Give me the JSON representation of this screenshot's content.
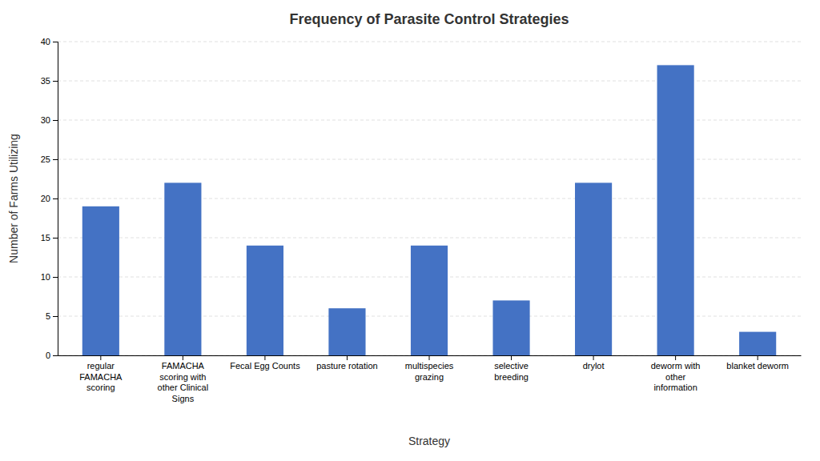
{
  "chart_data": {
    "type": "bar",
    "title": "Frequency of Parasite Control Strategies",
    "xlabel": "Strategy",
    "ylabel": "Number of Farms Utilizing",
    "categories": [
      "regular\nFAMACHA\nscoring",
      "FAMACHA\nscoring with\nother Clinical\nSigns",
      "Fecal Egg Counts",
      "pasture rotation",
      "multispecies\ngrazing",
      "selective\nbreeding",
      "drylot",
      "deworm with\nother\ninformation",
      "blanket deworm"
    ],
    "values": [
      19,
      22,
      14,
      6,
      14,
      7,
      22,
      37,
      3
    ],
    "color": "#4472C4",
    "ylim": [
      0,
      40
    ],
    "yticks": [
      0,
      5,
      10,
      15,
      20,
      25,
      30,
      35,
      40
    ],
    "grid": true
  }
}
